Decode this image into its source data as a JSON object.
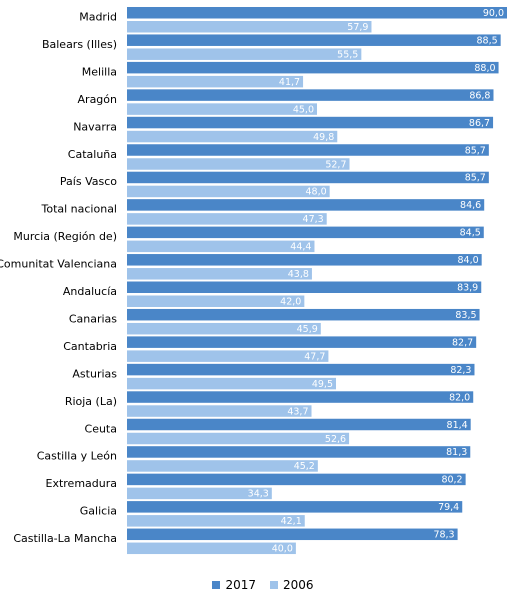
{
  "chart_data": {
    "type": "bar",
    "orientation": "horizontal",
    "categories": [
      "Madrid",
      "Balears (Illes)",
      "Melilla",
      "Aragón",
      "Navarra",
      "Cataluña",
      "País Vasco",
      "Total nacional",
      "Murcia (Región de)",
      "Comunitat Valenciana",
      "Andalucía",
      "Canarias",
      "Cantabria",
      "Asturias",
      "Rioja (La)",
      "Ceuta",
      "Castilla y León",
      "Extremadura",
      "Galicia",
      "Castilla-La Mancha"
    ],
    "series": [
      {
        "name": "2017",
        "color": "#4a86c8",
        "values": [
          90.0,
          88.5,
          88.0,
          86.8,
          86.7,
          85.7,
          85.7,
          84.6,
          84.5,
          84.0,
          83.9,
          83.5,
          82.7,
          82.3,
          82.0,
          81.4,
          81.3,
          80.2,
          79.4,
          78.3
        ],
        "labels": [
          "90,0",
          "88,5",
          "88,0",
          "86,8",
          "86,7",
          "85,7",
          "85,7",
          "84,6",
          "84,5",
          "84,0",
          "83,9",
          "83,5",
          "82,7",
          "82,3",
          "82,0",
          "81,4",
          "81,3",
          "80,2",
          "79,4",
          "78,3"
        ]
      },
      {
        "name": "2006",
        "color": "#9fc3ea",
        "values": [
          57.9,
          55.5,
          41.7,
          45.0,
          49.8,
          52.7,
          48.0,
          47.3,
          44.4,
          43.8,
          42.0,
          45.9,
          47.7,
          49.5,
          43.7,
          52.6,
          45.2,
          34.3,
          42.1,
          40.0
        ],
        "labels": [
          "57,9",
          "55,5",
          "41,7",
          "45,0",
          "49,8",
          "52,7",
          "48,0",
          "47,3",
          "44,4",
          "43,8",
          "42,0",
          "45,9",
          "47,7",
          "49,5",
          "43,7",
          "52,6",
          "45,2",
          "34,3",
          "42,1",
          "40,0"
        ]
      }
    ],
    "xlim": [
      0,
      90
    ],
    "legend": "bottom",
    "grid": false
  }
}
